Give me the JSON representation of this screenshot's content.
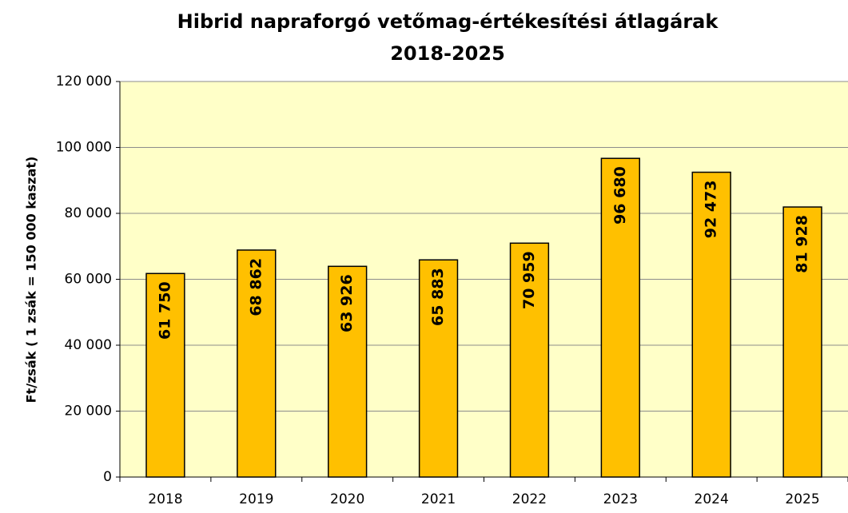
{
  "chart_data": {
    "type": "bar",
    "title": "Hibrid napraforgó vetőmag-értékesítési átlagárak",
    "subtitle": "2018-2025",
    "y_label": "Ft/zsák ( 1 zsák = 150 000 kaszat)",
    "categories": [
      "2018",
      "2019",
      "2020",
      "2021",
      "2022",
      "2023",
      "2024",
      "2025"
    ],
    "values": [
      61750,
      68862,
      63926,
      65883,
      70959,
      96680,
      92473,
      81928
    ],
    "value_labels": [
      "61 750",
      "68 862",
      "63 926",
      "65 883",
      "70 959",
      "96 680",
      "92 473",
      "81 928"
    ],
    "color": "#ffc000",
    "ylim": [
      0,
      120000
    ],
    "yticks": [
      0,
      {
        "value": 20000,
        "label": "20 000"
      },
      {
        "value": 40000,
        "label": "40 000"
      },
      {
        "value": 60000,
        "label": "60 000"
      },
      {
        "value": 80000,
        "label": "80 000"
      },
      {
        "value": 100000,
        "label": "100 000"
      },
      {
        "value": 120000,
        "label": "120 000"
      }
    ],
    "grid": true
  }
}
